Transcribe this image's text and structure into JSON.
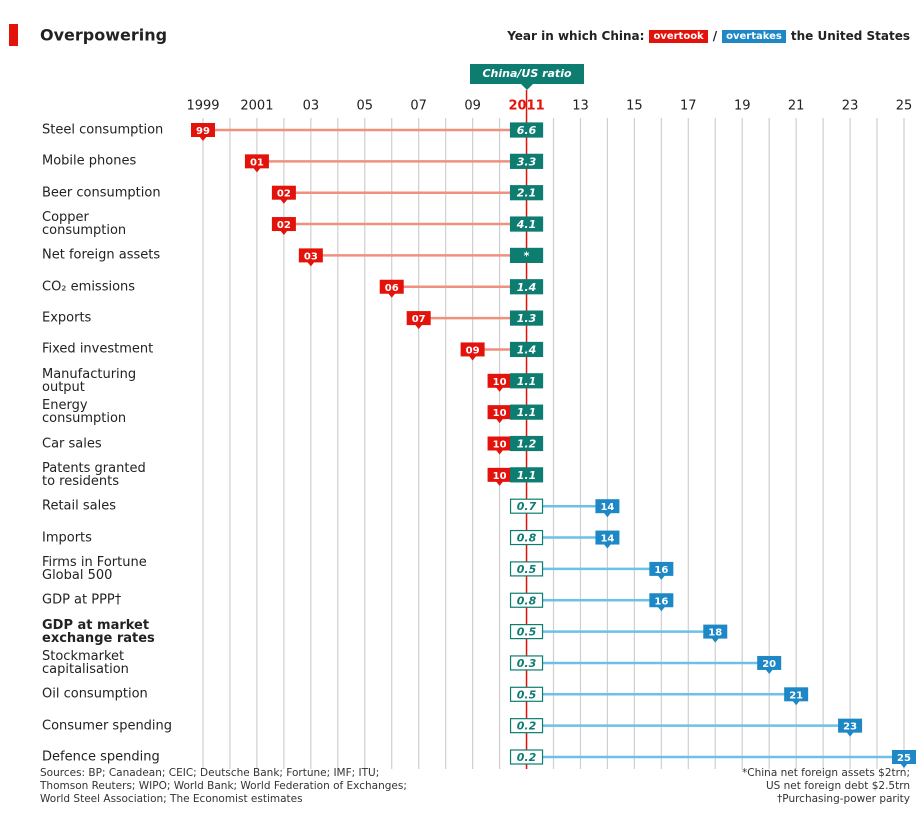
{
  "chart_data": {
    "type": "dumbbell",
    "title": "Overpowering",
    "subtitle": "Year in which China:",
    "legend_separator": "/",
    "subtitle_end": "the United States",
    "ratio_title": "China/US ratio",
    "categories": [
      "Steel consumption",
      "Mobile phones",
      "Beer consumption",
      "Copper\nconsumption",
      "Net foreign assets",
      "CO₂ emissions",
      "Exports",
      "Fixed investment",
      "Manufacturing\noutput",
      "Energy\nconsumption",
      "Car sales",
      "Patents granted\nto residents",
      "Retail sales",
      "Imports",
      "Firms in Fortune\nGlobal 500",
      "GDP at PPP†",
      "GDP at market\nexchange rates",
      "Stockmarket\ncapitalisation",
      "Oil consumption",
      "Consumer spending",
      "Defence spending"
    ],
    "bold_category": 16,
    "reference": 2011,
    "series": [
      {
        "name": "overtook",
        "color": "#e3120b",
        "line_color": "#f0907f",
        "values": [
          1999,
          2001,
          2002,
          2002,
          2003,
          2006,
          2007,
          2009,
          2010,
          2010,
          2010,
          2010,
          null,
          null,
          null,
          null,
          null,
          null,
          null,
          null,
          null
        ],
        "value_labels": [
          "99",
          "01",
          "02",
          "02",
          "03",
          "06",
          "07",
          "09",
          "10",
          "10",
          "10",
          "10",
          null,
          null,
          null,
          null,
          null,
          null,
          null,
          null,
          null
        ]
      },
      {
        "name": "overtakes",
        "color": "#1e88c7",
        "line_color": "#6cc0ea",
        "values": [
          null,
          null,
          null,
          null,
          null,
          null,
          null,
          null,
          null,
          null,
          null,
          null,
          2014,
          2014,
          2016,
          2016,
          2018,
          2020,
          2021,
          2023,
          2025
        ],
        "value_labels": [
          null,
          null,
          null,
          null,
          null,
          null,
          null,
          null,
          null,
          null,
          null,
          null,
          "14",
          "14",
          "16",
          "16",
          "18",
          "20",
          "21",
          "23",
          "25"
        ]
      }
    ],
    "ratios": [
      6.6,
      3.3,
      2.1,
      4.1,
      "*",
      1.4,
      1.3,
      1.4,
      1.1,
      1.1,
      1.2,
      1.1,
      0.7,
      0.8,
      0.5,
      0.8,
      0.5,
      0.3,
      0.5,
      0.2,
      0.2
    ],
    "xlim": [
      1999,
      2025
    ],
    "xticks": [
      1999,
      2001,
      {
        "value": 2003,
        "label": "03"
      },
      {
        "value": 2005,
        "label": "05"
      },
      {
        "value": 2007,
        "label": "07"
      },
      {
        "value": 2009,
        "label": "09"
      },
      2011,
      {
        "value": 2013,
        "label": "13"
      },
      {
        "value": 2015,
        "label": "15"
      },
      {
        "value": 2017,
        "label": "17"
      },
      {
        "value": 2019,
        "label": "19"
      },
      {
        "value": 2021,
        "label": "21"
      },
      {
        "value": 2023,
        "label": "23"
      },
      {
        "value": 2025,
        "label": "25"
      }
    ],
    "grid": true,
    "sources": "Sources: BP; Canadean; CEIC; Deutsche Bank; Fortune; IMF; ITU;\nThomson Reuters; WIPO; World Bank; World Federation of Exchanges;\nWorld Steel Association; The Economist estimates",
    "footnotes": "*China net foreign assets $2trn;\nUS net foreign debt $2.5trn\n†Purchasing-power parity"
  }
}
